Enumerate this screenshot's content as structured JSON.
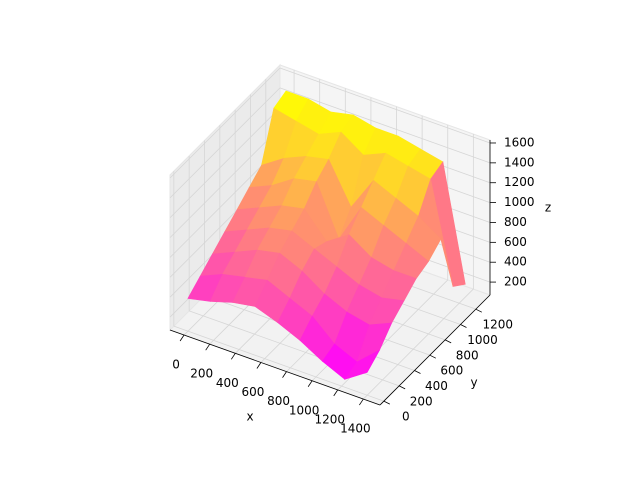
{
  "chart_data": {
    "type": "surface",
    "x": [
      0,
      175,
      350,
      525,
      700,
      875,
      1050,
      1225,
      1400
    ],
    "y": [
      0,
      160,
      320,
      480,
      640,
      800,
      960,
      1120,
      1280
    ],
    "z": [
      [
        400,
        450,
        520,
        560,
        480,
        380,
        250,
        150,
        300
      ],
      [
        500,
        600,
        650,
        700,
        600,
        500,
        300,
        200,
        400
      ],
      [
        600,
        700,
        800,
        850,
        750,
        600,
        500,
        450,
        550
      ],
      [
        700,
        800,
        900,
        950,
        850,
        750,
        650,
        600,
        650
      ],
      [
        800,
        900,
        1000,
        1050,
        800,
        950,
        800,
        750,
        750
      ],
      [
        900,
        1000,
        1150,
        1200,
        700,
        1100,
        1000,
        900,
        800
      ],
      [
        1000,
        1150,
        1250,
        1300,
        900,
        1250,
        1150,
        1050,
        900
      ],
      [
        1450,
        1400,
        1350,
        1450,
        1300,
        1400,
        1350,
        1300,
        300
      ],
      [
        1500,
        1500,
        1450,
        1500,
        1450,
        1450,
        1400,
        1350,
        200
      ]
    ],
    "colormap": "spring",
    "xlim": [
      -110,
      1530
    ],
    "ylim": [
      -50,
      1385
    ],
    "zlim": [
      70,
      1630
    ],
    "xticks": [
      0,
      200,
      400,
      600,
      800,
      1000,
      1200,
      1400
    ],
    "yticks": [
      0,
      200,
      400,
      600,
      800,
      1000,
      1200
    ],
    "zticks": [
      200,
      400,
      600,
      800,
      1000,
      1200,
      1400,
      1600
    ],
    "xlabel": "x",
    "ylabel": "y",
    "zlabel": "z",
    "grid": true
  }
}
